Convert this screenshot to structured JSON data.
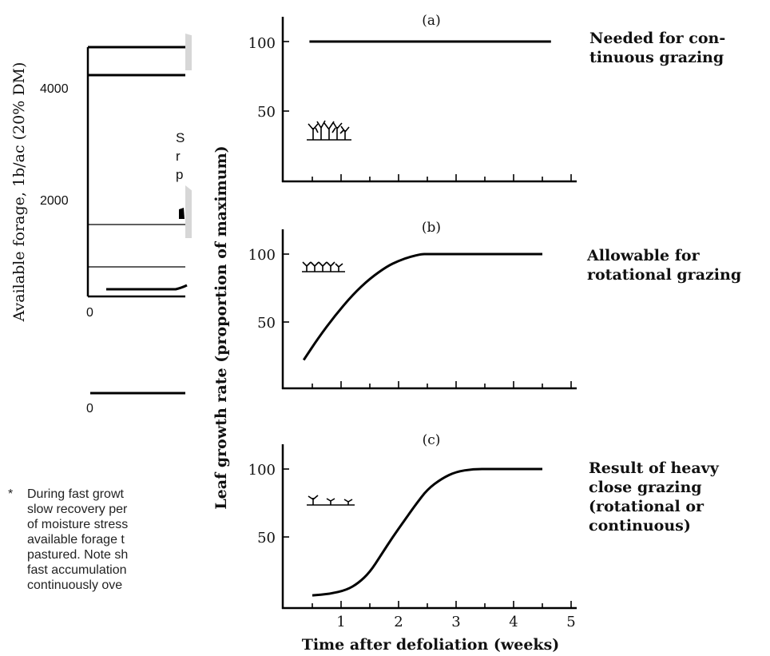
{
  "background_chart": {
    "ylabel": "Available forage, 1b/ac  (20% DM)",
    "yticks": [
      "4000",
      "2000"
    ],
    "x_zero_top": "0",
    "x_zero_bottom": "0",
    "cut_text": [
      "S",
      "r",
      "p"
    ]
  },
  "footnote": {
    "marker": "*",
    "lines": [
      "During fast growt",
      "slow recovery per",
      "of moisture stress",
      "available forage t",
      "pastured. Note sh",
      "fast accumulation",
      "continuously ove"
    ]
  },
  "shared": {
    "ylabel": "Leaf growth rate (proportion of maximum)",
    "xlabel": "Time after defoliation (weeks)",
    "xticks": [
      "1",
      "2",
      "3",
      "4",
      "5"
    ],
    "yticks": [
      "100",
      "50"
    ]
  },
  "chart_data": [
    {
      "type": "line",
      "panel": "(a)",
      "annotation": [
        "Needed for con-",
        "tinuous grazing"
      ],
      "x": [
        0.45,
        4.65
      ],
      "y": [
        100,
        100
      ]
    },
    {
      "type": "line",
      "panel": "(b)",
      "annotation": [
        "Allowable for",
        "rotational grazing"
      ],
      "x": [
        0.35,
        0.6,
        0.9,
        1.2,
        1.5,
        1.8,
        2.0,
        2.2,
        2.4,
        2.5,
        3.0,
        3.5,
        4.0,
        4.5
      ],
      "y": [
        22,
        38,
        55,
        70,
        82,
        91,
        95,
        98,
        100,
        100,
        100,
        100,
        100,
        100
      ]
    },
    {
      "type": "line",
      "panel": "(c)",
      "annotation": [
        "Result of heavy",
        "close grazing",
        "(rotational or",
        "continuous)"
      ],
      "x": [
        0.5,
        0.8,
        1.1,
        1.3,
        1.5,
        1.7,
        1.9,
        2.1,
        2.3,
        2.5,
        2.75,
        3.0,
        3.3,
        3.6,
        4.0,
        4.5
      ],
      "y": [
        7,
        8,
        11,
        16,
        24,
        37,
        50,
        62,
        74,
        85,
        93,
        98,
        100,
        100,
        100,
        100
      ]
    }
  ]
}
